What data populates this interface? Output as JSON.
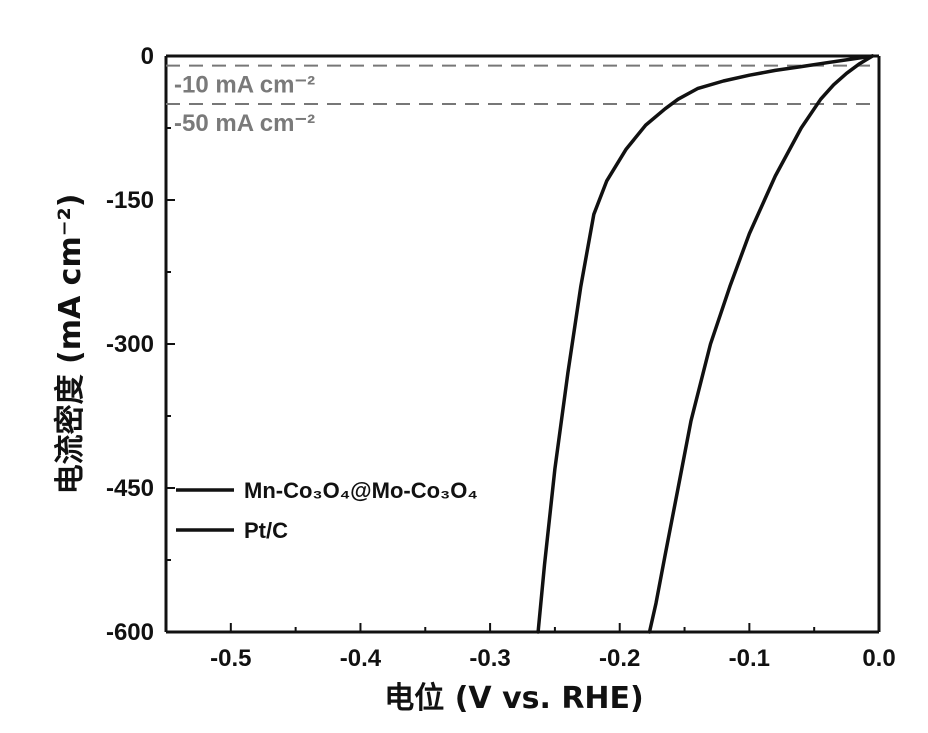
{
  "chart_data": {
    "type": "line",
    "xlabel": "电位 (V vs. RHE)",
    "ylabel": "电流密度 (mA cm⁻²)",
    "xlim": [
      -0.55,
      0.0
    ],
    "ylim": [
      -600,
      0
    ],
    "x_ticks": [
      -0.5,
      -0.4,
      -0.3,
      -0.2,
      -0.1,
      0.0
    ],
    "x_tick_labels": [
      "-0.5",
      "-0.4",
      "-0.3",
      "-0.2",
      "-0.1",
      "0.0"
    ],
    "y_ticks": [
      0,
      -150,
      -300,
      -450,
      -600
    ],
    "y_tick_labels": [
      "0",
      "-150",
      "-300",
      "-450",
      "-600"
    ],
    "grid": false,
    "legend_position": "lower-left",
    "reference_lines": [
      {
        "y": -10,
        "label": "-10 mA cm⁻²",
        "style": "dashed"
      },
      {
        "y": -50,
        "label": "-50 mA cm⁻²",
        "style": "dashed"
      }
    ],
    "series": [
      {
        "name": "Mn-Co₃O₄@Mo-Co₃O₄",
        "color": "#111111",
        "x": [
          -0.005,
          -0.02,
          -0.04,
          -0.06,
          -0.08,
          -0.1,
          -0.12,
          -0.14,
          -0.155,
          -0.165,
          -0.18,
          -0.195,
          -0.21,
          -0.22,
          -0.23,
          -0.24,
          -0.25,
          -0.258,
          -0.263
        ],
        "y": [
          0,
          -3,
          -7,
          -11,
          -15,
          -20,
          -26,
          -34,
          -45,
          -55,
          -72,
          -97,
          -130,
          -165,
          -240,
          -330,
          -430,
          -530,
          -600
        ]
      },
      {
        "name": "Pt/C",
        "color": "#111111",
        "x": [
          -0.005,
          -0.015,
          -0.025,
          -0.035,
          -0.045,
          -0.06,
          -0.08,
          -0.1,
          -0.115,
          -0.13,
          -0.145,
          -0.155,
          -0.165,
          -0.172,
          -0.177
        ],
        "y": [
          0,
          -8,
          -18,
          -30,
          -45,
          -75,
          -125,
          -185,
          -240,
          -300,
          -380,
          -450,
          -520,
          -570,
          -600
        ]
      }
    ]
  }
}
